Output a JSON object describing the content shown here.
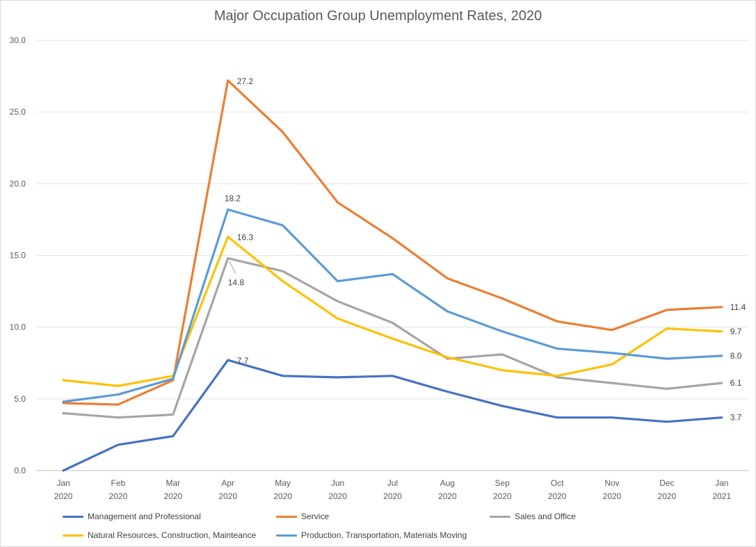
{
  "chart_data": {
    "type": "line",
    "title": "Major Occupation Group Unemployment Rates, 2020",
    "categories": [
      [
        "Jan",
        "2020"
      ],
      [
        "Feb",
        "2020"
      ],
      [
        "Mar",
        "2020"
      ],
      [
        "Apr",
        "2020"
      ],
      [
        "May",
        "2020"
      ],
      [
        "Jun",
        "2020"
      ],
      [
        "Jul",
        "2020"
      ],
      [
        "Aug",
        "2020"
      ],
      [
        "Sep",
        "2020"
      ],
      [
        "Oct",
        "2020"
      ],
      [
        "Nov",
        "2020"
      ],
      [
        "Dec",
        "2020"
      ],
      [
        "Jan",
        "2021"
      ]
    ],
    "ylim": [
      0,
      30
    ],
    "yticks": [
      "0.0",
      "5.0",
      "10.0",
      "15.0",
      "20.0",
      "25.0",
      "30.0"
    ],
    "grid": true,
    "legend_position": "bottom",
    "series": [
      {
        "name": "Management and Professional",
        "color": "#4472C4",
        "values": [
          0.0,
          1.8,
          2.4,
          7.7,
          6.6,
          6.5,
          6.6,
          5.5,
          4.5,
          3.7,
          3.7,
          3.4,
          3.7
        ]
      },
      {
        "name": "Service",
        "color": "#ED7D31",
        "values": [
          4.7,
          4.6,
          6.3,
          27.2,
          23.6,
          18.7,
          16.2,
          13.4,
          12.0,
          10.4,
          9.8,
          11.2,
          11.4
        ]
      },
      {
        "name": "Sales and Office",
        "color": "#A5A5A5",
        "values": [
          4.0,
          3.7,
          3.9,
          14.8,
          13.9,
          11.8,
          10.3,
          7.8,
          8.1,
          6.5,
          6.1,
          5.7,
          6.1
        ]
      },
      {
        "name": "Natural Resources, Construction, Mainteance",
        "color": "#FFC000",
        "values": [
          6.3,
          5.9,
          6.6,
          16.3,
          13.2,
          10.6,
          9.2,
          7.9,
          7.0,
          6.6,
          7.4,
          9.9,
          9.7
        ]
      },
      {
        "name": "Production, Transportation, Materials Moving",
        "color": "#5B9BD5",
        "values": [
          4.8,
          5.3,
          6.4,
          18.2,
          17.1,
          13.2,
          13.7,
          11.1,
          9.7,
          8.5,
          8.2,
          7.8,
          8.0
        ]
      }
    ],
    "data_labels": [
      {
        "series": 1,
        "index": 3,
        "text": "27.2"
      },
      {
        "series": 4,
        "index": 3,
        "text": "18.2"
      },
      {
        "series": 3,
        "index": 3,
        "text": "16.3"
      },
      {
        "series": 2,
        "index": 3,
        "text": "14.8"
      },
      {
        "series": 0,
        "index": 3,
        "text": "7.7"
      },
      {
        "series": 1,
        "index": 12,
        "text": "11.4"
      },
      {
        "series": 3,
        "index": 12,
        "text": "9.7"
      },
      {
        "series": 4,
        "index": 12,
        "text": "8.0"
      },
      {
        "series": 2,
        "index": 12,
        "text": "6.1"
      },
      {
        "series": 0,
        "index": 12,
        "text": "3.7"
      }
    ]
  }
}
